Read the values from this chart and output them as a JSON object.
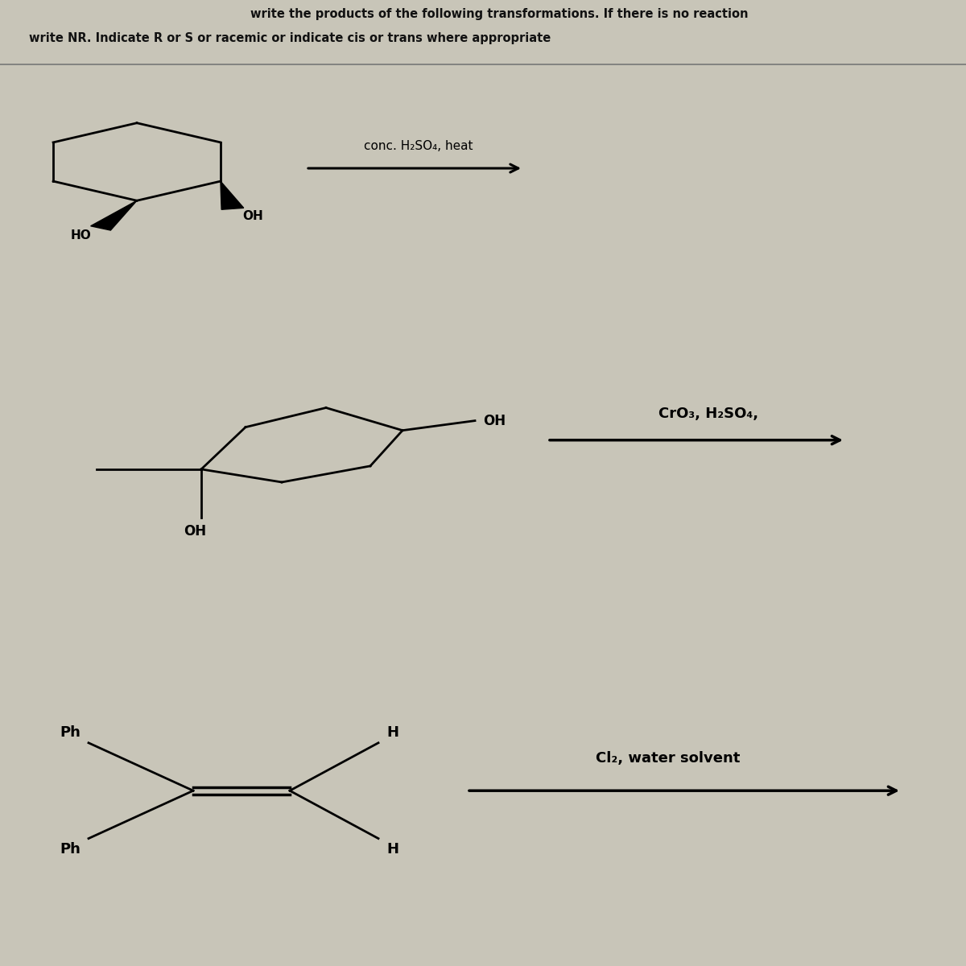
{
  "bg_panel1": "#c8c5b8",
  "bg_panel2": "#bbb8ac",
  "bg_panel3": "#b8b5a8",
  "text_color": "#111111",
  "title_line1": "write the products of the following transformations. If there is no reaction",
  "title_line2": "write NR. Indicate R or S or racemic or indicate cis or trans where appropriate",
  "rxn1_reagent": "conc. H₂SO₄, heat",
  "rxn2_reagent": "CrO₃, H₂SO₄,",
  "rxn3_reagent": "Cl₂, water solvent"
}
